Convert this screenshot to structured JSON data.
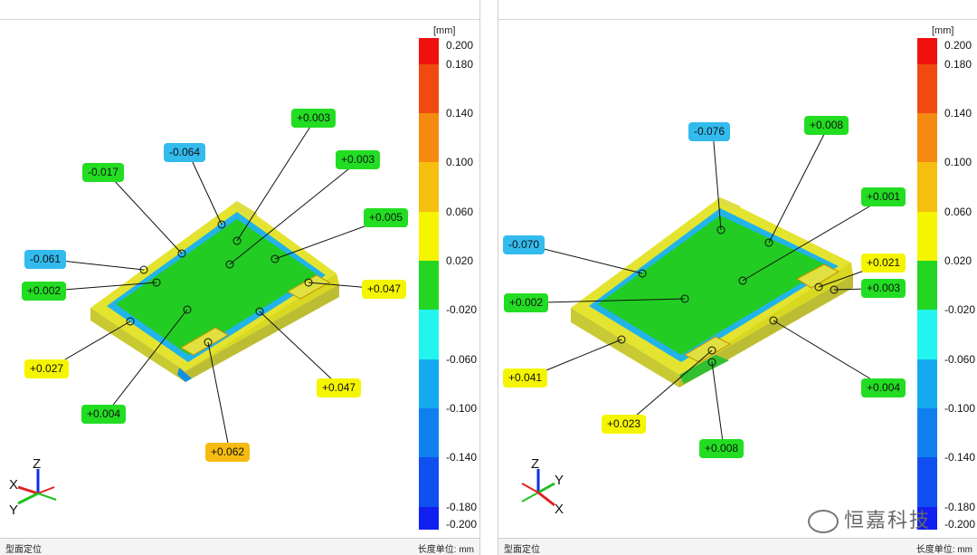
{
  "unit_label": "[mm]",
  "status_left": "型面定位",
  "status_right": "长度单位: mm",
  "watermark": "恒嘉科技",
  "scale_ticks": [
    "0.200",
    "0.180",
    "0.140",
    "0.100",
    "0.060",
    "0.020",
    "-0.020",
    "-0.060",
    "-0.100",
    "-0.140",
    "-0.180",
    "-0.200"
  ],
  "scale_colors": [
    "#f01010",
    "#f04a10",
    "#f58a10",
    "#f5bf10",
    "#f5f500",
    "#22d622",
    "#22f5f0",
    "#15aaf0",
    "#1080f0",
    "#1050f0",
    "#1020f0"
  ],
  "axes": {
    "x": "X",
    "y": "Y",
    "z": "Z"
  },
  "left_panel": {
    "callouts": [
      {
        "text": "+0.003",
        "color": "#22dd22"
      },
      {
        "text": "-0.064",
        "color": "#33bbee"
      },
      {
        "text": "+0.003",
        "color": "#22dd22"
      },
      {
        "text": "-0.017",
        "color": "#22dd22"
      },
      {
        "text": "+0.005",
        "color": "#22dd22"
      },
      {
        "text": "-0.061",
        "color": "#33bbee"
      },
      {
        "text": "+0.002",
        "color": "#22dd22"
      },
      {
        "text": "+0.047",
        "color": "#f5f500"
      },
      {
        "text": "+0.027",
        "color": "#f5f500"
      },
      {
        "text": "+0.047",
        "color": "#f5f500"
      },
      {
        "text": "+0.004",
        "color": "#22dd22"
      },
      {
        "text": "+0.062",
        "color": "#f5bb10"
      }
    ]
  },
  "right_panel": {
    "callouts": [
      {
        "text": "-0.076",
        "color": "#33bbee"
      },
      {
        "text": "+0.008",
        "color": "#22dd22"
      },
      {
        "text": "+0.001",
        "color": "#22dd22"
      },
      {
        "text": "-0.070",
        "color": "#33bbee"
      },
      {
        "text": "+0.021",
        "color": "#f5f500"
      },
      {
        "text": "+0.002",
        "color": "#22dd22"
      },
      {
        "text": "+0.003",
        "color": "#22dd22"
      },
      {
        "text": "+0.041",
        "color": "#f5f500"
      },
      {
        "text": "+0.004",
        "color": "#22dd22"
      },
      {
        "text": "+0.023",
        "color": "#f5f500"
      },
      {
        "text": "+0.008",
        "color": "#22dd22"
      }
    ]
  }
}
